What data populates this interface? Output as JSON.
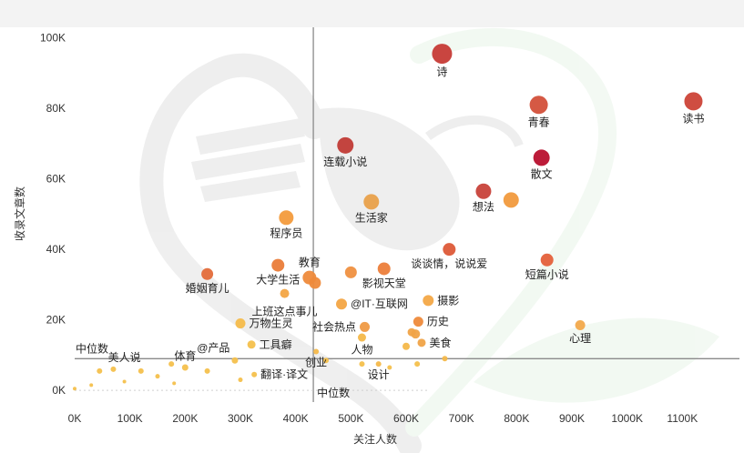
{
  "chart_data": {
    "type": "scatter",
    "xlabel": "关注人数",
    "ylabel": "收录文章数",
    "xlim": [
      0,
      1200000
    ],
    "ylim": [
      -1500,
      103000
    ],
    "x_ticks": [
      0,
      100000,
      200000,
      300000,
      400000,
      500000,
      600000,
      700000,
      800000,
      900000,
      1000000,
      1100000
    ],
    "x_tick_labels": [
      "0K",
      "100K",
      "200K",
      "300K",
      "400K",
      "500K",
      "600K",
      "700K",
      "800K",
      "900K",
      "1000K",
      "1100K"
    ],
    "y_ticks": [
      0,
      20000,
      40000,
      60000,
      80000,
      100000
    ],
    "y_tick_labels": [
      "0K",
      "20K",
      "40K",
      "60K",
      "80K",
      "100K"
    ],
    "grid": false,
    "reference_lines": {
      "median_x": 432000,
      "median_x_label": "中位数",
      "median_y": 9000,
      "median_y_label": "中位数"
    },
    "color_scale": {
      "low": "#f2c45c",
      "mid": "#ee8e3a",
      "high": "#b8102e"
    },
    "points": [
      {
        "label": "诗",
        "x": 665000,
        "y": 95500,
        "size": 11,
        "color": "#c63b36"
      },
      {
        "label": "读书",
        "x": 1120000,
        "y": 82000,
        "size": 10,
        "color": "#cc4337"
      },
      {
        "label": "青春",
        "x": 840000,
        "y": 81000,
        "size": 10,
        "color": "#d3503a"
      },
      {
        "label": "连载小说",
        "x": 490000,
        "y": 69500,
        "size": 9,
        "color": "#c03a35"
      },
      {
        "label": "散文",
        "x": 845000,
        "y": 66000,
        "size": 9,
        "color": "#b8102e"
      },
      {
        "label": "想法",
        "x": 740000,
        "y": 56500,
        "size": 8.5,
        "color": "#c8423a"
      },
      {
        "label": "",
        "x": 790000,
        "y": 54000,
        "size": 8.5,
        "color": "#f19a3d"
      },
      {
        "label": "生活家",
        "x": 537000,
        "y": 53500,
        "size": 8.5,
        "color": "#e8a04a"
      },
      {
        "label": "程序员",
        "x": 383000,
        "y": 49000,
        "size": 8,
        "color": "#f39b3c"
      },
      {
        "label": "谈谈情，说说爱",
        "x": 678000,
        "y": 40000,
        "size": 7,
        "color": "#dd5a38"
      },
      {
        "label": "短篇小说",
        "x": 855000,
        "y": 37000,
        "size": 7,
        "color": "#e4603a"
      },
      {
        "label": "教育",
        "x": 425000,
        "y": 32000,
        "size": 7.5,
        "color": "#ee8a3b"
      },
      {
        "label": "大学生活",
        "x": 368000,
        "y": 35500,
        "size": 7,
        "color": "#ea7c39"
      },
      {
        "label": "",
        "x": 435000,
        "y": 30500,
        "size": 6.5,
        "color": "#ee8a3b"
      },
      {
        "label": "影视天堂",
        "x": 560000,
        "y": 34500,
        "size": 7,
        "color": "#ec7e3a"
      },
      {
        "label": "",
        "x": 500000,
        "y": 33500,
        "size": 6.5,
        "color": "#ef9040"
      },
      {
        "label": "婚姻育儿",
        "x": 240000,
        "y": 33000,
        "size": 6.5,
        "color": "#e36c3a"
      },
      {
        "label": "上班这点事儿",
        "x": 380000,
        "y": 27500,
        "size": 5,
        "color": "#f3a544"
      },
      {
        "label": "@IT·互联网",
        "x": 483000,
        "y": 24500,
        "size": 6,
        "color": "#f3a544"
      },
      {
        "label": "摄影",
        "x": 640000,
        "y": 25500,
        "size": 6,
        "color": "#f3a847"
      },
      {
        "label": "历史",
        "x": 622000,
        "y": 19500,
        "size": 5.5,
        "color": "#ee8a3b"
      },
      {
        "label": "万物生灵",
        "x": 300000,
        "y": 19000,
        "size": 5.5,
        "color": "#f4bb4a"
      },
      {
        "label": "社会热点",
        "x": 525000,
        "y": 18000,
        "size": 5.5,
        "color": "#ef9a45"
      },
      {
        "label": "心理",
        "x": 915000,
        "y": 18500,
        "size": 5.5,
        "color": "#f2a94b"
      },
      {
        "label": "",
        "x": 617000,
        "y": 16000,
        "size": 5,
        "color": "#f0a347"
      },
      {
        "label": "",
        "x": 610000,
        "y": 16500,
        "size": 4.5,
        "color": "#f0a347"
      },
      {
        "label": "美食",
        "x": 628000,
        "y": 13500,
        "size": 4.5,
        "color": "#f0a347"
      },
      {
        "label": "工具癖",
        "x": 320000,
        "y": 13000,
        "size": 4.5,
        "color": "#f4c04c"
      },
      {
        "label": "人物",
        "x": 520000,
        "y": 15000,
        "size": 4.5,
        "color": "#f4b84a"
      },
      {
        "label": "",
        "x": 600000,
        "y": 12500,
        "size": 4,
        "color": "#f4b84a"
      },
      {
        "label": "@产品",
        "x": 290000,
        "y": 8500,
        "size": 3.5,
        "color": "#f4c04c"
      },
      {
        "label": "体育",
        "x": 200000,
        "y": 6500,
        "size": 3.5,
        "color": "#f4c04c"
      },
      {
        "label": "",
        "x": 240000,
        "y": 5500,
        "size": 3,
        "color": "#f4c04c"
      },
      {
        "label": "",
        "x": 175000,
        "y": 7500,
        "size": 3,
        "color": "#f4c04c"
      },
      {
        "label": "",
        "x": 150000,
        "y": 4000,
        "size": 2.5,
        "color": "#f4c04c"
      },
      {
        "label": "",
        "x": 120000,
        "y": 5500,
        "size": 3,
        "color": "#f4c04c"
      },
      {
        "label": "",
        "x": 70000,
        "y": 6000,
        "size": 3,
        "color": "#f4c04c"
      },
      {
        "label": "",
        "x": 45000,
        "y": 5500,
        "size": 3,
        "color": "#f4c04c"
      },
      {
        "label": "",
        "x": 30000,
        "y": 1500,
        "size": 2,
        "color": "#f4c04c"
      },
      {
        "label": "",
        "x": 90000,
        "y": 2500,
        "size": 2,
        "color": "#f4c04c"
      },
      {
        "label": "",
        "x": 180000,
        "y": 2000,
        "size": 2,
        "color": "#f4c04c"
      },
      {
        "label": "",
        "x": 0,
        "y": 500,
        "size": 2,
        "color": "#f4c04c"
      },
      {
        "label": "翻译·译文",
        "x": 325000,
        "y": 4500,
        "size": 3,
        "color": "#f4c04c"
      },
      {
        "label": "",
        "x": 300000,
        "y": 3000,
        "size": 2.5,
        "color": "#f4c04c"
      },
      {
        "label": "创业",
        "x": 437000,
        "y": 11000,
        "size": 3,
        "color": "#f4b84a"
      },
      {
        "label": "",
        "x": 455000,
        "y": 8500,
        "size": 3,
        "color": "#f4c04c"
      },
      {
        "label": "设计",
        "x": 550000,
        "y": 7500,
        "size": 3,
        "color": "#f4b84a"
      },
      {
        "label": "",
        "x": 520000,
        "y": 7500,
        "size": 3,
        "color": "#f4c04c"
      },
      {
        "label": "",
        "x": 570000,
        "y": 6500,
        "size": 2.5,
        "color": "#f4c04c"
      },
      {
        "label": "",
        "x": 670000,
        "y": 9000,
        "size": 3,
        "color": "#f4b84a"
      },
      {
        "label": "",
        "x": 620000,
        "y": 7500,
        "size": 3,
        "color": "#f4c04c"
      }
    ],
    "labels": [
      {
        "text": "诗",
        "x": 665000,
        "y": 95500,
        "side": "below"
      },
      {
        "text": "读书",
        "x": 1120000,
        "y": 82000,
        "side": "below"
      },
      {
        "text": "青春",
        "x": 840000,
        "y": 81000,
        "side": "below"
      },
      {
        "text": "连载小说",
        "x": 490000,
        "y": 69500,
        "side": "below"
      },
      {
        "text": "散文",
        "x": 845000,
        "y": 66000,
        "side": "below"
      },
      {
        "text": "想法",
        "x": 740000,
        "y": 56500,
        "side": "below"
      },
      {
        "text": "生活家",
        "x": 537000,
        "y": 53500,
        "side": "below"
      },
      {
        "text": "程序员",
        "x": 383000,
        "y": 49000,
        "side": "below"
      },
      {
        "text": "谈谈情，说说爱",
        "x": 678000,
        "y": 40000,
        "side": "below"
      },
      {
        "text": "短篇小说",
        "x": 855000,
        "y": 37000,
        "side": "below"
      },
      {
        "text": "教育",
        "x": 425000,
        "y": 32000,
        "side": "above"
      },
      {
        "text": "大学生活",
        "x": 368000,
        "y": 35500,
        "side": "below"
      },
      {
        "text": "影视天堂",
        "x": 560000,
        "y": 34500,
        "side": "below"
      },
      {
        "text": "婚姻育儿",
        "x": 240000,
        "y": 33000,
        "side": "below"
      },
      {
        "text": "上班这点事儿",
        "x": 380000,
        "y": 27500,
        "side": "center"
      },
      {
        "text": "@IT·互联网",
        "x": 483000,
        "y": 24500,
        "side": "right"
      },
      {
        "text": "摄影",
        "x": 640000,
        "y": 25500,
        "side": "right"
      },
      {
        "text": "历史",
        "x": 622000,
        "y": 19500,
        "side": "right"
      },
      {
        "text": "万物生灵",
        "x": 300000,
        "y": 19000,
        "side": "right"
      },
      {
        "text": "社会热点",
        "x": 525000,
        "y": 18000,
        "side": "left"
      },
      {
        "text": "心理",
        "x": 915000,
        "y": 18500,
        "side": "below"
      },
      {
        "text": "美食",
        "x": 628000,
        "y": 13500,
        "side": "right"
      },
      {
        "text": "工具癖",
        "x": 320000,
        "y": 13000,
        "side": "right"
      },
      {
        "text": "人物",
        "x": 520000,
        "y": 15000,
        "side": "below"
      },
      {
        "text": "@产品",
        "x": 290000,
        "y": 8500,
        "side": "aboveleft"
      },
      {
        "text": "体育",
        "x": 200000,
        "y": 6500,
        "side": "above"
      },
      {
        "text": "美人说",
        "x": 90000,
        "y": 6000,
        "side": "above"
      },
      {
        "text": "翻译·译文",
        "x": 325000,
        "y": 4500,
        "side": "right"
      },
      {
        "text": "创业",
        "x": 437000,
        "y": 11000,
        "side": "below"
      },
      {
        "text": "设计",
        "x": 550000,
        "y": 7500,
        "side": "below"
      }
    ]
  }
}
